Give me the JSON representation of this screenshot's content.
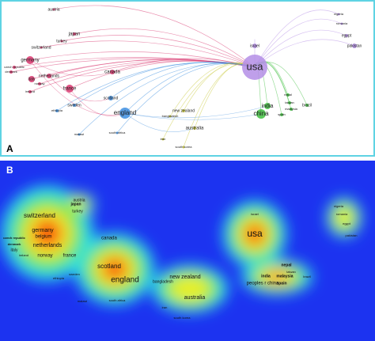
{
  "panels": [
    {
      "label": "A",
      "nodes": [
        "austria",
        "japan",
        "turkey",
        "switzerland",
        "germany",
        "czech republic",
        "denmark",
        "netherlands",
        "italy",
        "norway",
        "ireland",
        "france",
        "canada",
        "scotland",
        "england",
        "sweden",
        "ethiopia",
        "malawi",
        "south africa",
        "bangladesh",
        "new zealand",
        "australia",
        "iran",
        "south korea",
        "usa",
        "israel",
        "nigeria",
        "romania",
        "egypt",
        "pakistan",
        "india",
        "china",
        "nepal",
        "taiwan",
        "malaysia",
        "spain",
        "brazil"
      ]
    },
    {
      "label": "B",
      "nodes": [
        "austria",
        "japan",
        "turkey",
        "switzerland",
        "germany",
        "belgium",
        "czech republic",
        "denmark",
        "netherlands",
        "italy",
        "ireland",
        "norway",
        "france",
        "canada",
        "scotland",
        "england",
        "sweden",
        "ethiopia",
        "malawi",
        "south africa",
        "bangladesh",
        "new zealand",
        "australia",
        "iran",
        "south korea",
        "usa",
        "israel",
        "nigeria",
        "romania",
        "egypt",
        "pakistan",
        "nepal",
        "taiwan",
        "india",
        "malaysia",
        "peoples r china",
        "spain",
        "brazil"
      ]
    }
  ]
}
